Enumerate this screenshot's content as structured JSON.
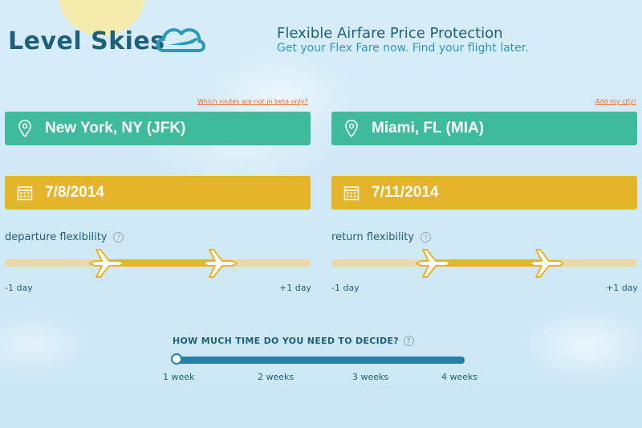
{
  "brand": {
    "name": "Level Skies"
  },
  "header": {
    "title": "Flexible Airfare Price Protection",
    "subtitle": "Get your Flex Fare now. Find your flight later."
  },
  "links": {
    "beta_routes": "Which routes are not in beta only?",
    "add_city": "Add my city!"
  },
  "origin": {
    "value": "New York, NY (JFK)"
  },
  "destination": {
    "value": "Miami, FL (MIA)"
  },
  "depart_date": {
    "value": "7/8/2014"
  },
  "return_date": {
    "value": "7/11/2014"
  },
  "departure_flex": {
    "label": "departure flexibility",
    "min": "-1 day",
    "max": "+1 day",
    "low": 0.33,
    "high": 0.7
  },
  "return_flex": {
    "label": "return flexibility",
    "min": "-1 day",
    "max": "+1 day",
    "low": 0.33,
    "high": 0.7
  },
  "decide": {
    "title": "HOW MUCH TIME DO YOU NEED TO DECIDE?",
    "options": [
      "1 week",
      "2 weeks",
      "3 weeks",
      "4 weeks"
    ],
    "selected": "1 week"
  },
  "colors": {
    "green": "#3dbb9a",
    "gold": "#e5b42a",
    "navy": "#1e5f7a",
    "teal": "#2a9ab8",
    "orange_link": "#e86a2e",
    "slider_blue": "#2a7fa6",
    "background": "#cfe8f6"
  },
  "icons": {
    "logo": "cloud-plane-icon",
    "location": "map-pin-icon",
    "calendar": "calendar-icon",
    "help": "help-circle-icon",
    "plane": "airplane-icon"
  }
}
